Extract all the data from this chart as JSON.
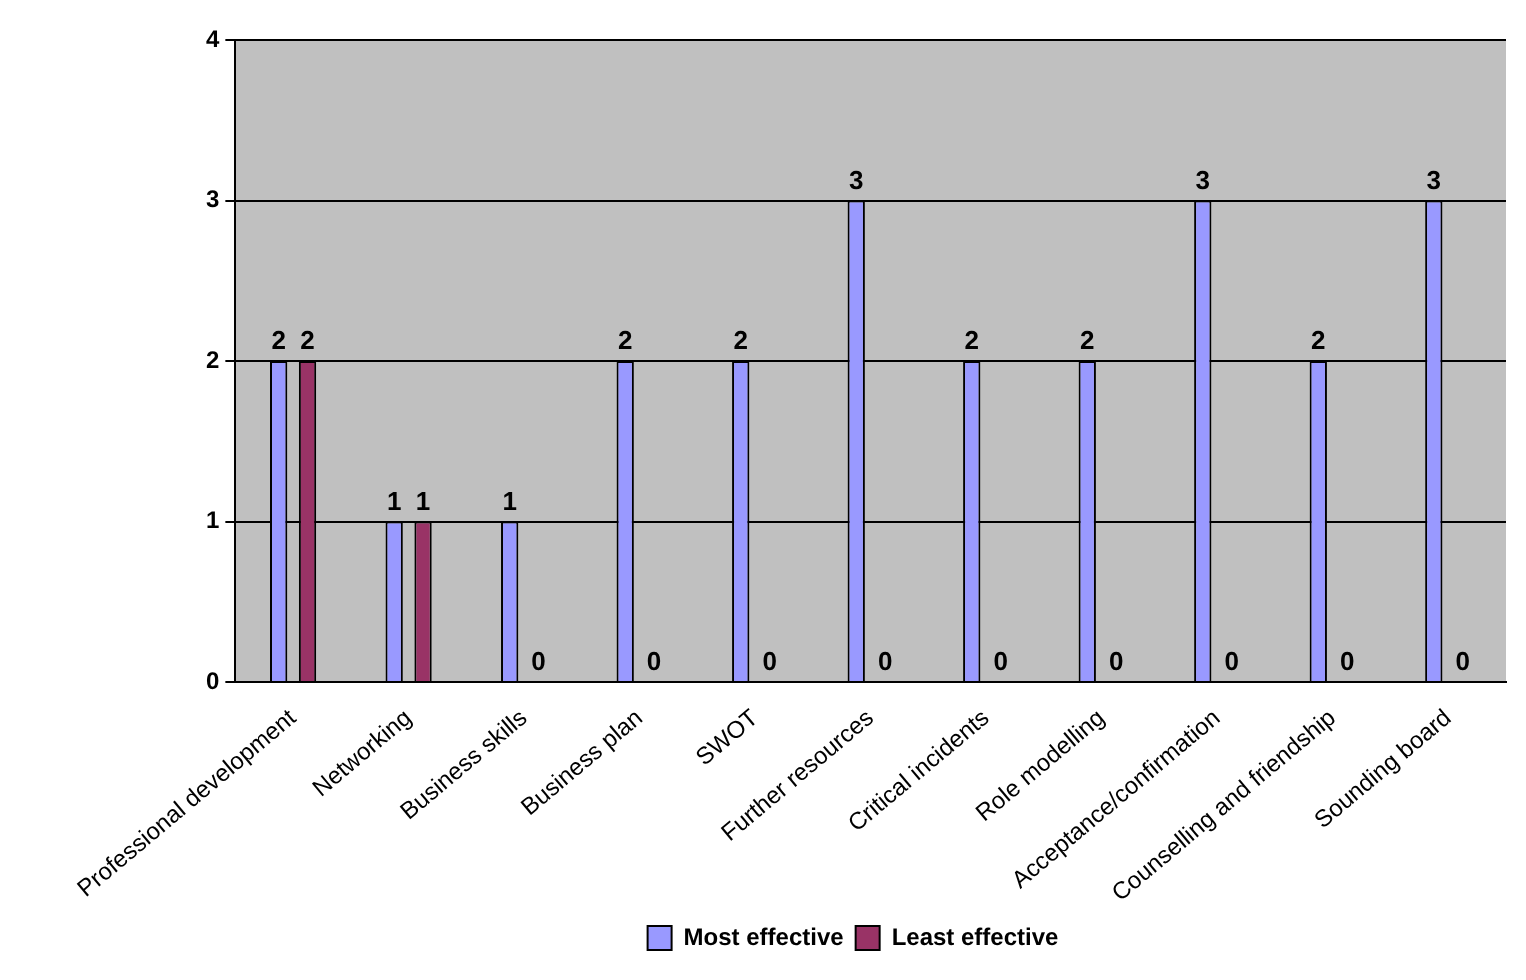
{
  "chart_data": {
    "type": "bar",
    "categories": [
      "Professional development",
      "Networking",
      "Business skills",
      "Business plan",
      "SWOT",
      "Further resources",
      "Critical incidents",
      "Role modelling",
      "Acceptance/confirmation",
      "Counselling and friendship",
      "Sounding board"
    ],
    "series": [
      {
        "name": "Most effective",
        "color": "#9999ff",
        "values": [
          2,
          1,
          1,
          2,
          2,
          3,
          2,
          2,
          3,
          2,
          3
        ]
      },
      {
        "name": "Least effective",
        "color": "#993366",
        "values": [
          2,
          1,
          0,
          0,
          0,
          0,
          0,
          0,
          0,
          0,
          0
        ]
      }
    ],
    "ylim": [
      0,
      4
    ],
    "yticks": [
      0,
      1,
      2,
      3,
      4
    ],
    "grid": "y",
    "legend": "bottom",
    "data_labels": true
  }
}
